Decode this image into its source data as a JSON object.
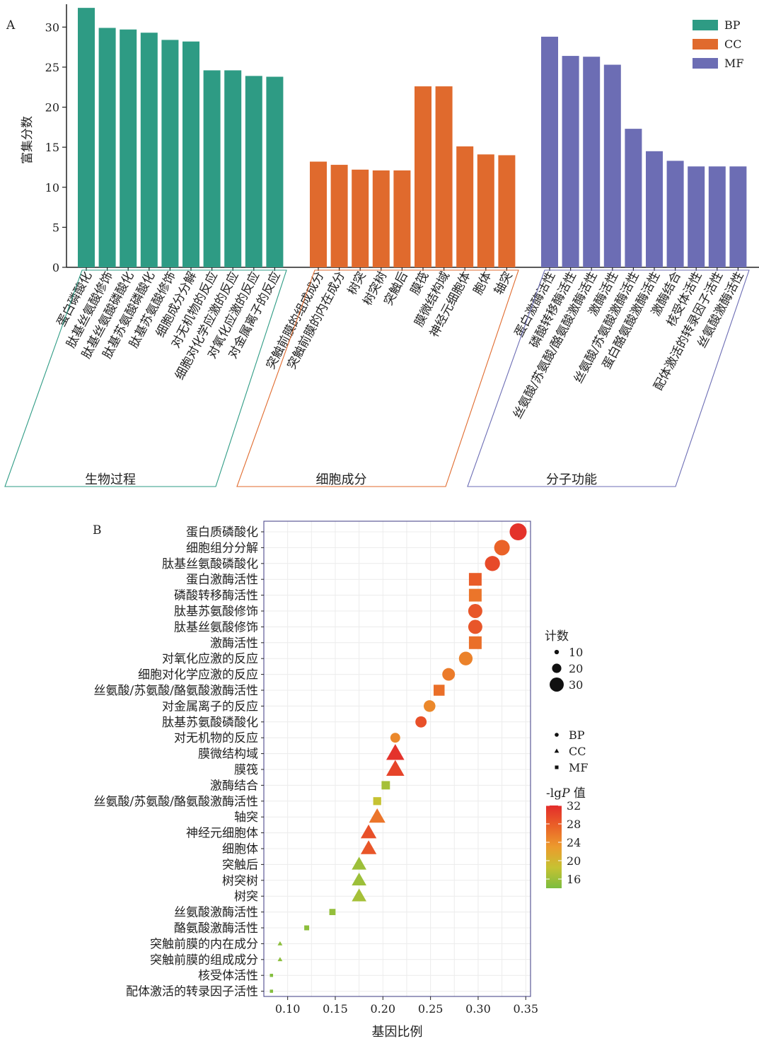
{
  "chart_data": [
    {
      "panel": "A",
      "type": "bar",
      "ylabel": "富集分数",
      "ylim": [
        0,
        32.5
      ],
      "yticks": [
        0,
        5,
        10,
        15,
        20,
        25,
        30
      ],
      "legend_position": "top-right",
      "series": [
        {
          "name": "BP",
          "color": "#2e9b84",
          "group_label": "生物过程",
          "categories": [
            "蛋白磷酸化",
            "肽基丝氨酸修饰",
            "肽基丝氨酸磷酸化",
            "肽基苏氨酸磷酸化",
            "肽基苏氨酸修饰",
            "细胞成分分解",
            "对无机物的反应",
            "细胞对化学应激的反应",
            "对氧化应激的反应",
            "对金属离子的反应"
          ],
          "values": [
            32.4,
            29.9,
            29.7,
            29.3,
            28.4,
            28.2,
            24.6,
            24.6,
            23.9,
            23.8
          ]
        },
        {
          "name": "CC",
          "color": "#e06a2d",
          "group_label": "细胞成分",
          "categories": [
            "突触前膜的组成成分",
            "突触前膜的内在成分",
            "树突",
            "树突树",
            "突触后",
            "膜筏",
            "膜微结构域",
            "神经元细胞体",
            "胞体",
            "轴突"
          ],
          "values": [
            13.2,
            12.8,
            12.2,
            12.1,
            12.1,
            22.6,
            22.6,
            15.1,
            14.1,
            14.0
          ]
        },
        {
          "name": "MF",
          "color": "#6c6db4",
          "group_label": "分子功能",
          "categories": [
            "蛋白激酶活性",
            "磷酸转移酶活性",
            "丝氨酸/苏氨酸/酪氨酸激酶活性",
            "激酶活性",
            "丝氨酸/苏氨酸激酶活性",
            "蛋白酪氨酸激酶活性",
            "激酶结合",
            "核受体活性",
            "配体激活的转录因子活性",
            "丝氨酸激酶活性"
          ],
          "values": [
            28.8,
            26.4,
            26.3,
            25.3,
            17.3,
            14.5,
            13.3,
            12.6,
            12.6,
            12.6
          ]
        }
      ]
    },
    {
      "panel": "B",
      "type": "scatter",
      "xlabel": "基因比例",
      "xlim": [
        0.075,
        0.355
      ],
      "xticks": [
        0.1,
        0.15,
        0.2,
        0.25,
        0.3,
        0.35
      ],
      "xtick_labels": [
        "0.10",
        "0.15",
        "0.20",
        "0.25",
        "0.30",
        "0.35"
      ],
      "grid": true,
      "legend_position": "right",
      "size_legend": {
        "title": "计数",
        "values": [
          10,
          20,
          30
        ]
      },
      "shape_legend": {
        "items": [
          {
            "name": "BP",
            "shape": "circle"
          },
          {
            "name": "CC",
            "shape": "triangle"
          },
          {
            "name": "MF",
            "shape": "square"
          }
        ]
      },
      "color_legend": {
        "title_prefix": "-lg",
        "title_var": "P",
        "title_suffix": " 值",
        "range": [
          14,
          32
        ],
        "ticks": [
          32,
          28,
          24,
          20,
          16
        ],
        "colors": [
          "#7bbd3f",
          "#c6c232",
          "#ec9b2d",
          "#ea6228",
          "#e32c2b"
        ]
      },
      "points": [
        {
          "term": "蛋白质磷酸化",
          "ratio": 0.342,
          "count": 36,
          "group": "BP",
          "lgp": 31.5
        },
        {
          "term": "细胞组分分解",
          "ratio": 0.325,
          "count": 33,
          "group": "BP",
          "lgp": 27.5
        },
        {
          "term": "肽基丝氨酸磷酸化",
          "ratio": 0.315,
          "count": 32,
          "group": "BP",
          "lgp": 29.5
        },
        {
          "term": "蛋白激酶活性",
          "ratio": 0.297,
          "count": 30,
          "group": "MF",
          "lgp": 28.0
        },
        {
          "term": "磷酸转移酶活性",
          "ratio": 0.297,
          "count": 30,
          "group": "MF",
          "lgp": 26.0
        },
        {
          "term": "肽基苏氨酸修饰",
          "ratio": 0.297,
          "count": 30,
          "group": "BP",
          "lgp": 28.5
        },
        {
          "term": "肽基丝氨酸修饰",
          "ratio": 0.297,
          "count": 30,
          "group": "BP",
          "lgp": 28.5
        },
        {
          "term": "激酶活性",
          "ratio": 0.297,
          "count": 30,
          "group": "MF",
          "lgp": 26.5
        },
        {
          "term": "对氧化应激的反应",
          "ratio": 0.287,
          "count": 29,
          "group": "BP",
          "lgp": 25.0
        },
        {
          "term": "细胞对化学应激的反应",
          "ratio": 0.269,
          "count": 27,
          "group": "BP",
          "lgp": 25.5
        },
        {
          "term": "丝氨酸/苏氨酸/酪氨酸激酶活性",
          "ratio": 0.259,
          "count": 26,
          "group": "MF",
          "lgp": 26.5
        },
        {
          "term": "对金属离子的反应",
          "ratio": 0.249,
          "count": 25,
          "group": "BP",
          "lgp": 24.5
        },
        {
          "term": "肽基苏氨酸磷酸化",
          "ratio": 0.24,
          "count": 24,
          "group": "BP",
          "lgp": 29.0
        },
        {
          "term": "对无机物的反应",
          "ratio": 0.213,
          "count": 21,
          "group": "BP",
          "lgp": 24.5
        },
        {
          "term": "膜微结构域",
          "ratio": 0.213,
          "count": 32,
          "group": "CC",
          "lgp": 31.5
        },
        {
          "term": "膜筏",
          "ratio": 0.213,
          "count": 32,
          "group": "CC",
          "lgp": 30.0
        },
        {
          "term": "激酶结合",
          "ratio": 0.203,
          "count": 20,
          "group": "MF",
          "lgp": 16.5
        },
        {
          "term": "丝氨酸/苏氨酸/酪氨酸激酶活性",
          "ratio": 0.194,
          "count": 19,
          "group": "MF",
          "lgp": 18.5
        },
        {
          "term": "轴突",
          "ratio": 0.194,
          "count": 29,
          "group": "CC",
          "lgp": 26.0
        },
        {
          "term": "神经元细胞体",
          "ratio": 0.185,
          "count": 28,
          "group": "CC",
          "lgp": 29.0
        },
        {
          "term": "细胞体",
          "ratio": 0.185,
          "count": 28,
          "group": "CC",
          "lgp": 28.5
        },
        {
          "term": "突触后",
          "ratio": 0.175,
          "count": 26,
          "group": "CC",
          "lgp": 16.0
        },
        {
          "term": "树突树",
          "ratio": 0.175,
          "count": 26,
          "group": "CC",
          "lgp": 16.0
        },
        {
          "term": "树突",
          "ratio": 0.175,
          "count": 26,
          "group": "CC",
          "lgp": 16.5
        },
        {
          "term": "丝氨酸激酶活性",
          "ratio": 0.147,
          "count": 15,
          "group": "MF",
          "lgp": 15.5
        },
        {
          "term": "酪氨酸激酶活性",
          "ratio": 0.12,
          "count": 12,
          "group": "MF",
          "lgp": 15.0
        },
        {
          "term": "突触前膜的内在成分",
          "ratio": 0.092,
          "count": 9,
          "group": "CC",
          "lgp": 15.0
        },
        {
          "term": "突触前膜的组成成分",
          "ratio": 0.092,
          "count": 9,
          "group": "CC",
          "lgp": 15.0
        },
        {
          "term": "核受体活性",
          "ratio": 0.083,
          "count": 8,
          "group": "MF",
          "lgp": 14.5
        },
        {
          "term": "配体激活的转录因子活性",
          "ratio": 0.083,
          "count": 8,
          "group": "MF",
          "lgp": 14.5
        }
      ]
    }
  ]
}
